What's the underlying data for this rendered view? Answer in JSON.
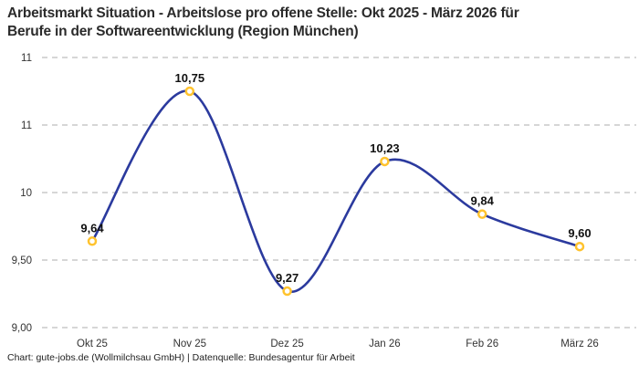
{
  "header": {
    "title_lines": [
      "Arbeitsmarkt Situation - Arbeitslose pro offene Stelle: Okt 2025 - März 2026 für",
      "Berufe in der Softwareentwicklung (Region München)"
    ]
  },
  "chart_data": {
    "type": "line",
    "title": "Arbeitsmarkt Situation - Arbeitslose pro offene Stelle: Okt 2025 - März 2026 für Berufe in der Softwareentwicklung (Region München)",
    "categories": [
      "Okt 25",
      "Nov 25",
      "Dez 25",
      "Jan 26",
      "Feb 26",
      "März 26"
    ],
    "values": [
      9.64,
      10.75,
      9.27,
      10.23,
      9.84,
      9.6
    ],
    "point_labels": [
      "9,64",
      "10,75",
      "9,27",
      "10,23",
      "9,84",
      "9,60"
    ],
    "xlabel": "",
    "ylabel": "",
    "ylim": [
      9.0,
      11.0
    ],
    "y_ticks": [
      {
        "value": 11.0,
        "label": "11"
      },
      {
        "value": 10.5,
        "label": "11"
      },
      {
        "value": 10.0,
        "label": "10"
      },
      {
        "value": 9.5,
        "label": "9,50"
      },
      {
        "value": 9.0,
        "label": "9,00"
      }
    ],
    "grid": "dashed-horizontal",
    "legend": "none",
    "smooth": true,
    "line_color": "#2b3a9e",
    "marker_color": "#ffc32e",
    "marker_fill": "#ffffff",
    "grid_color": "#c9c9c9"
  },
  "footer": {
    "credit": "Chart: gute-jobs.de (Wollmilchsau GmbH) | Datenquelle: Bundesagentur für Arbeit"
  }
}
